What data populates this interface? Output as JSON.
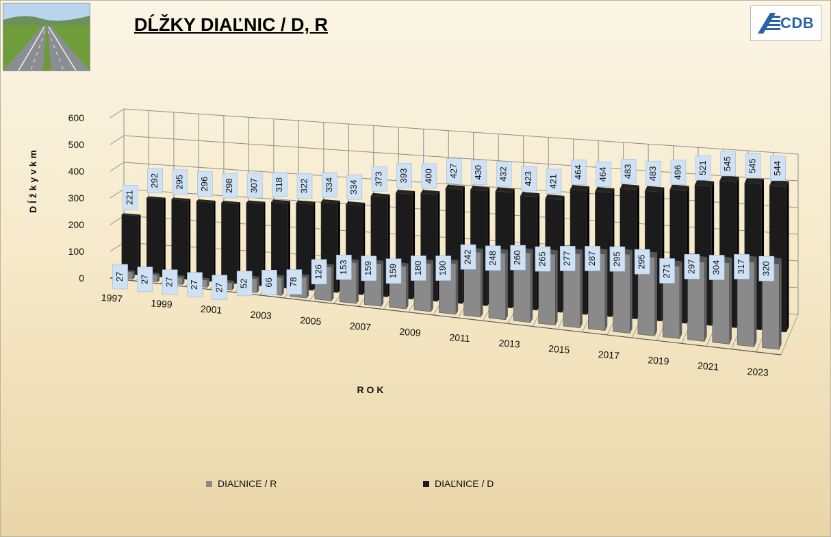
{
  "page": {
    "title": "DĹŽKY DIAĽNIC / D, R",
    "logo_text": "CDB"
  },
  "colors": {
    "series_r": "#8a8a8a",
    "series_d": "#1b1b1b",
    "label_bg": "#cfe2f5",
    "grid": "#8c8c8c"
  },
  "icons": {
    "photo": "highway-photo",
    "logo": "cdb-logo-icon"
  },
  "chart_data": {
    "type": "bar",
    "title": "DĹŽKY DIAĽNIC / D, R",
    "xlabel": "R O K",
    "ylabel": "D ĺ ž k y  v  k m",
    "ylim": [
      0,
      600
    ],
    "yticks": [
      "0",
      "100",
      "200",
      "300",
      "400",
      "500",
      "600"
    ],
    "categories": [
      "1997",
      "1998",
      "1999",
      "2000",
      "2001",
      "2002",
      "2003",
      "2004",
      "2005",
      "2006",
      "2007",
      "2008",
      "2009",
      "2010",
      "2011",
      "2012",
      "2013",
      "2014",
      "2015",
      "2016",
      "2017",
      "2018",
      "2019",
      "2020",
      "2021",
      "2022",
      "2023"
    ],
    "xtick_labels": [
      "1997",
      "1999",
      "2001",
      "2003",
      "2005",
      "2007",
      "2009",
      "2011",
      "2013",
      "2015",
      "2017",
      "2019",
      "2021",
      "2023"
    ],
    "series": [
      {
        "name": "DIAĽNICE / R",
        "values": [
          27,
          27,
          27,
          27,
          27,
          52,
          66,
          78,
          126,
          153,
          159,
          159,
          180,
          190,
          242,
          248,
          260,
          265,
          277,
          287,
          295,
          295,
          271,
          297,
          304,
          317,
          320
        ]
      },
      {
        "name": "DIAĽNICE / D",
        "values": [
          221,
          292,
          295,
          296,
          298,
          307,
          318,
          322,
          334,
          334,
          373,
          393,
          400,
          427,
          430,
          432,
          423,
          421,
          464,
          464,
          483,
          483,
          496,
          521,
          545,
          545,
          544
        ]
      }
    ],
    "grid": true,
    "legend_position": "bottom",
    "style": "3d-column"
  }
}
